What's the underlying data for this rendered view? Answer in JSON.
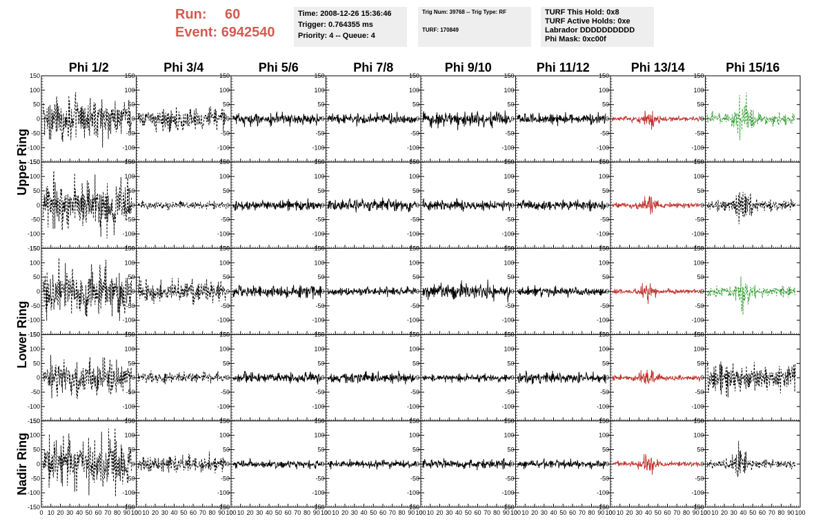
{
  "header": {
    "run_label": "Run:",
    "run_value": "60",
    "event_label": "Event:",
    "event_value": "6942540",
    "time": "Time: 2008-12-26 15:36:46",
    "trigger": "Trigger: 0.764355 ms",
    "priority": "Priority: 4 -- Queue: 4",
    "trig_num": "Trig Num: 39768 -- Trig Type: RF",
    "turf": "TURF: 170849",
    "turf_hold": "TURF This Hold: 0x8",
    "turf_active": "TURF Active Holds: 0xe",
    "labrador": "Labrador DDDDDDDDDD",
    "phi_mask": "Phi Mask: 0xc00f"
  },
  "colors": {
    "run_text": "#d45a4f",
    "info_bg": "#eeeeee",
    "trace_black": "#000000",
    "trace_red": "#c0302a",
    "trace_green": "#2f9a2f"
  },
  "chart_data": {
    "type": "line",
    "columns": [
      "Phi 1/2",
      "Phi 3/4",
      "Phi 5/6",
      "Phi 7/8",
      "Phi 9/10",
      "Phi 11/12",
      "Phi 13/14",
      "Phi 15/16"
    ],
    "row_groups": [
      {
        "label": "Upper Ring",
        "rows": [
          0,
          1
        ]
      },
      {
        "label": "Lower Ring",
        "rows": [
          2,
          3
        ]
      },
      {
        "label": "Nadir Ring",
        "rows": [
          4
        ]
      }
    ],
    "xlim": [
      0,
      100
    ],
    "ylim": [
      -150,
      150
    ],
    "x_ticks": [
      "0",
      "10",
      "20",
      "30",
      "40",
      "50",
      "60",
      "70",
      "80",
      "90",
      "100"
    ],
    "y_ticks": [
      "-150",
      "-100",
      "-50",
      "0",
      "50",
      "100",
      "150"
    ],
    "panels": [
      {
        "row": 0,
        "col": 0,
        "style": "dashed",
        "color": "black",
        "amplitude": 75,
        "burst_center": null
      },
      {
        "row": 0,
        "col": 1,
        "style": "dashed",
        "color": "black",
        "amplitude": 40,
        "burst_center": null
      },
      {
        "row": 0,
        "col": 2,
        "style": "solid",
        "color": "black",
        "amplitude": 22,
        "burst_center": null
      },
      {
        "row": 0,
        "col": 3,
        "style": "solid",
        "color": "black",
        "amplitude": 20,
        "burst_center": null
      },
      {
        "row": 0,
        "col": 4,
        "style": "solid",
        "color": "black",
        "amplitude": 28,
        "burst_center": null
      },
      {
        "row": 0,
        "col": 5,
        "style": "solid",
        "color": "black",
        "amplitude": 18,
        "burst_center": null
      },
      {
        "row": 0,
        "col": 6,
        "style": "solid",
        "color": "red",
        "amplitude": 20,
        "burst_center": 40
      },
      {
        "row": 0,
        "col": 7,
        "style": "dashed",
        "color": "green",
        "amplitude": 45,
        "burst_center": 40
      },
      {
        "row": 1,
        "col": 0,
        "style": "dashed",
        "color": "black",
        "amplitude": 90,
        "burst_center": null
      },
      {
        "row": 1,
        "col": 1,
        "style": "dashed",
        "color": "black",
        "amplitude": 15,
        "burst_center": null
      },
      {
        "row": 1,
        "col": 2,
        "style": "solid",
        "color": "black",
        "amplitude": 18,
        "burst_center": null
      },
      {
        "row": 1,
        "col": 3,
        "style": "solid",
        "color": "black",
        "amplitude": 20,
        "burst_center": null
      },
      {
        "row": 1,
        "col": 4,
        "style": "solid",
        "color": "black",
        "amplitude": 18,
        "burst_center": null
      },
      {
        "row": 1,
        "col": 5,
        "style": "solid",
        "color": "black",
        "amplitude": 18,
        "burst_center": null
      },
      {
        "row": 1,
        "col": 6,
        "style": "solid",
        "color": "red",
        "amplitude": 22,
        "burst_center": 40
      },
      {
        "row": 1,
        "col": 7,
        "style": "dashed",
        "color": "black",
        "amplitude": 45,
        "burst_center": 40
      },
      {
        "row": 2,
        "col": 0,
        "style": "dashed",
        "color": "black",
        "amplitude": 85,
        "burst_center": null
      },
      {
        "row": 2,
        "col": 1,
        "style": "dashed",
        "color": "black",
        "amplitude": 40,
        "burst_center": null
      },
      {
        "row": 2,
        "col": 2,
        "style": "solid",
        "color": "black",
        "amplitude": 20,
        "burst_center": null
      },
      {
        "row": 2,
        "col": 3,
        "style": "solid",
        "color": "black",
        "amplitude": 15,
        "burst_center": null
      },
      {
        "row": 2,
        "col": 4,
        "style": "solid",
        "color": "black",
        "amplitude": 28,
        "burst_center": null
      },
      {
        "row": 2,
        "col": 5,
        "style": "solid",
        "color": "black",
        "amplitude": 16,
        "burst_center": null
      },
      {
        "row": 2,
        "col": 6,
        "style": "solid",
        "color": "red",
        "amplitude": 20,
        "burst_center": 40
      },
      {
        "row": 2,
        "col": 7,
        "style": "dashed",
        "color": "green",
        "amplitude": 40,
        "burst_center": 40
      },
      {
        "row": 3,
        "col": 0,
        "style": "dashed",
        "color": "black",
        "amplitude": 65,
        "burst_center": null
      },
      {
        "row": 3,
        "col": 1,
        "style": "dashed",
        "color": "black",
        "amplitude": 20,
        "burst_center": null
      },
      {
        "row": 3,
        "col": 2,
        "style": "solid",
        "color": "black",
        "amplitude": 18,
        "burst_center": null
      },
      {
        "row": 3,
        "col": 3,
        "style": "solid",
        "color": "black",
        "amplitude": 18,
        "burst_center": null
      },
      {
        "row": 3,
        "col": 4,
        "style": "solid",
        "color": "black",
        "amplitude": 14,
        "burst_center": null
      },
      {
        "row": 3,
        "col": 5,
        "style": "solid",
        "color": "black",
        "amplitude": 18,
        "burst_center": null
      },
      {
        "row": 3,
        "col": 6,
        "style": "solid",
        "color": "red",
        "amplitude": 22,
        "burst_center": 40
      },
      {
        "row": 3,
        "col": 7,
        "style": "dashed",
        "color": "black",
        "amplitude": 55,
        "burst_center": null
      },
      {
        "row": 4,
        "col": 0,
        "style": "dashed",
        "color": "black",
        "amplitude": 90,
        "burst_center": null
      },
      {
        "row": 4,
        "col": 1,
        "style": "dashed",
        "color": "black",
        "amplitude": 30,
        "burst_center": null
      },
      {
        "row": 4,
        "col": 2,
        "style": "solid",
        "color": "black",
        "amplitude": 14,
        "burst_center": null
      },
      {
        "row": 4,
        "col": 3,
        "style": "solid",
        "color": "black",
        "amplitude": 14,
        "burst_center": null
      },
      {
        "row": 4,
        "col": 4,
        "style": "solid",
        "color": "black",
        "amplitude": 16,
        "burst_center": null
      },
      {
        "row": 4,
        "col": 5,
        "style": "solid",
        "color": "black",
        "amplitude": 14,
        "burst_center": null
      },
      {
        "row": 4,
        "col": 6,
        "style": "solid",
        "color": "red",
        "amplitude": 22,
        "burst_center": 40
      },
      {
        "row": 4,
        "col": 7,
        "style": "dashed",
        "color": "black",
        "amplitude": 35,
        "burst_center": 35
      }
    ]
  }
}
